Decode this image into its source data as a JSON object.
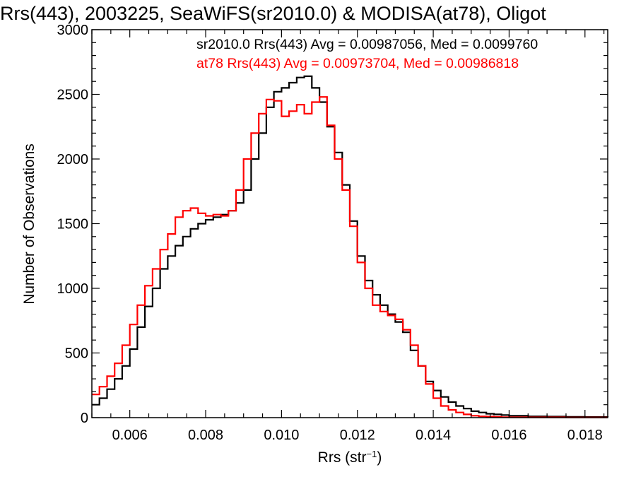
{
  "chart_data": {
    "type": "line",
    "step": true,
    "title": "Rrs(443), 2003225, SeaWiFS(sr2010.0) & MODISA(at78), Oligot",
    "xlabel_base": "Rrs (str",
    "xlabel_sup": "−1",
    "xlabel_end": ")",
    "ylabel": "Number of Observations",
    "xlim": [
      0.005,
      0.0186
    ],
    "ylim": [
      0,
      3000
    ],
    "x_ticks": [
      0.006,
      0.008,
      0.01,
      0.012,
      0.014,
      0.016,
      0.018
    ],
    "x_tick_labels": [
      "0.006",
      "0.008",
      "0.010",
      "0.012",
      "0.014",
      "0.016",
      "0.018"
    ],
    "y_ticks": [
      0,
      500,
      1000,
      1500,
      2000,
      2500,
      3000
    ],
    "y_tick_labels": [
      "0",
      "500",
      "1000",
      "1500",
      "2000",
      "2500",
      "3000"
    ],
    "legend": [
      {
        "text": "sr2010.0 Rrs(443) Avg = 0.00987056, Med = 0.0099760",
        "color": "#000000"
      },
      {
        "text": "at78 Rrs(443) Avg = 0.00973704, Med = 0.00986818",
        "color": "#ff0000"
      }
    ],
    "series": [
      {
        "color": "#000000",
        "x": [
          0.005,
          0.0052,
          0.0054,
          0.0056,
          0.0058,
          0.006,
          0.0062,
          0.0064,
          0.0066,
          0.0068,
          0.007,
          0.0072,
          0.0074,
          0.0076,
          0.0078,
          0.008,
          0.0082,
          0.0084,
          0.0086,
          0.0088,
          0.009,
          0.0092,
          0.0094,
          0.0096,
          0.0098,
          0.01,
          0.0102,
          0.0104,
          0.0106,
          0.0108,
          0.011,
          0.0112,
          0.0114,
          0.0116,
          0.0118,
          0.012,
          0.0122,
          0.0124,
          0.0126,
          0.0128,
          0.013,
          0.0132,
          0.0134,
          0.0136,
          0.0138,
          0.014,
          0.0142,
          0.0144,
          0.0146,
          0.0148,
          0.015,
          0.0152,
          0.0154,
          0.0156,
          0.0158,
          0.016,
          0.0165,
          0.017,
          0.0175,
          0.018,
          0.0186
        ],
        "y": [
          100,
          150,
          220,
          300,
          400,
          530,
          700,
          860,
          1000,
          1150,
          1250,
          1330,
          1400,
          1460,
          1500,
          1530,
          1550,
          1570,
          1600,
          1660,
          1760,
          2000,
          2200,
          2400,
          2520,
          2550,
          2590,
          2630,
          2640,
          2550,
          2440,
          2250,
          2050,
          1800,
          1520,
          1250,
          1060,
          950,
          870,
          800,
          740,
          660,
          520,
          400,
          280,
          210,
          160,
          120,
          90,
          70,
          50,
          40,
          30,
          25,
          20,
          15,
          10,
          8,
          6,
          5,
          4
        ]
      },
      {
        "color": "#ff0000",
        "x": [
          0.005,
          0.0052,
          0.0054,
          0.0056,
          0.0058,
          0.006,
          0.0062,
          0.0064,
          0.0066,
          0.0068,
          0.007,
          0.0072,
          0.0074,
          0.0076,
          0.0078,
          0.008,
          0.0082,
          0.0084,
          0.0086,
          0.0088,
          0.009,
          0.0092,
          0.0094,
          0.0096,
          0.0098,
          0.01,
          0.0102,
          0.0104,
          0.0106,
          0.0108,
          0.011,
          0.0112,
          0.0114,
          0.0116,
          0.0118,
          0.012,
          0.0122,
          0.0124,
          0.0126,
          0.0128,
          0.013,
          0.0132,
          0.0134,
          0.0136,
          0.0138,
          0.014,
          0.0142,
          0.0144,
          0.0146,
          0.0148,
          0.015,
          0.0152,
          0.0154,
          0.0156,
          0.0158,
          0.016,
          0.0165,
          0.017,
          0.0175,
          0.018,
          0.0186
        ],
        "y": [
          180,
          240,
          320,
          420,
          560,
          720,
          870,
          1020,
          1150,
          1300,
          1420,
          1550,
          1600,
          1620,
          1580,
          1560,
          1570,
          1560,
          1600,
          1760,
          2000,
          2200,
          2350,
          2460,
          2450,
          2330,
          2370,
          2420,
          2350,
          2440,
          2480,
          2260,
          2000,
          1760,
          1480,
          1200,
          1000,
          870,
          820,
          790,
          760,
          680,
          560,
          400,
          260,
          150,
          90,
          60,
          40,
          25,
          15,
          10,
          8,
          6,
          4,
          3,
          2,
          2,
          1,
          1,
          1
        ]
      }
    ]
  }
}
